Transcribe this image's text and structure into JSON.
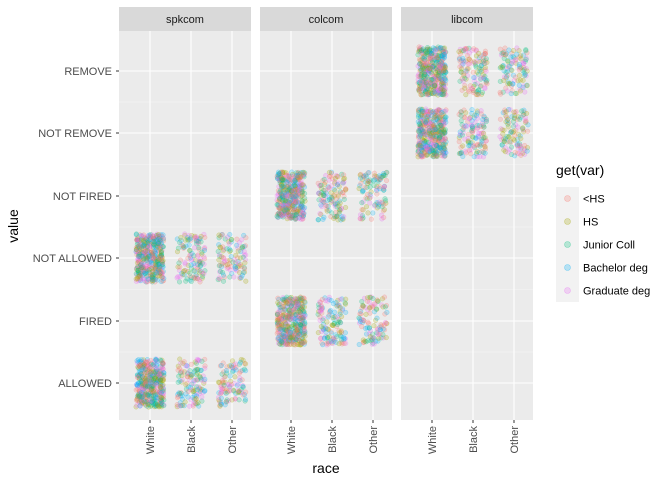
{
  "chart_data": {
    "type": "scatter",
    "jittered": true,
    "xlabel": "race",
    "ylabel": "value",
    "x_categories": [
      "White",
      "Black",
      "Other"
    ],
    "y_categories": [
      "ALLOWED",
      "FIRED",
      "NOT ALLOWED",
      "NOT FIRED",
      "NOT REMOVE",
      "REMOVE"
    ],
    "panels": [
      {
        "name": "spkcom",
        "y_levels_present": [
          "ALLOWED",
          "NOT ALLOWED"
        ]
      },
      {
        "name": "colcom",
        "y_levels_present": [
          "FIRED",
          "NOT FIRED"
        ]
      },
      {
        "name": "libcom",
        "y_levels_present": [
          "NOT REMOVE",
          "REMOVE"
        ]
      }
    ],
    "relative_density_by_race": {
      "White": 1.0,
      "Black": 0.3,
      "Other": 0.25
    },
    "legend": {
      "title": "get(var)",
      "position": "right",
      "entries": [
        {
          "label": "<HS",
          "color": "#F8766D"
        },
        {
          "label": "HS",
          "color": "#A3A500"
        },
        {
          "label": "Junior Coll",
          "color": "#00BF7D"
        },
        {
          "label": "Bachelor deg",
          "color": "#00B0F6"
        },
        {
          "label": "Graduate deg",
          "color": "#E76BF3"
        }
      ]
    },
    "grid": true,
    "panel_background": "#EBEBEB",
    "strip_background": "#D9D9D9"
  }
}
